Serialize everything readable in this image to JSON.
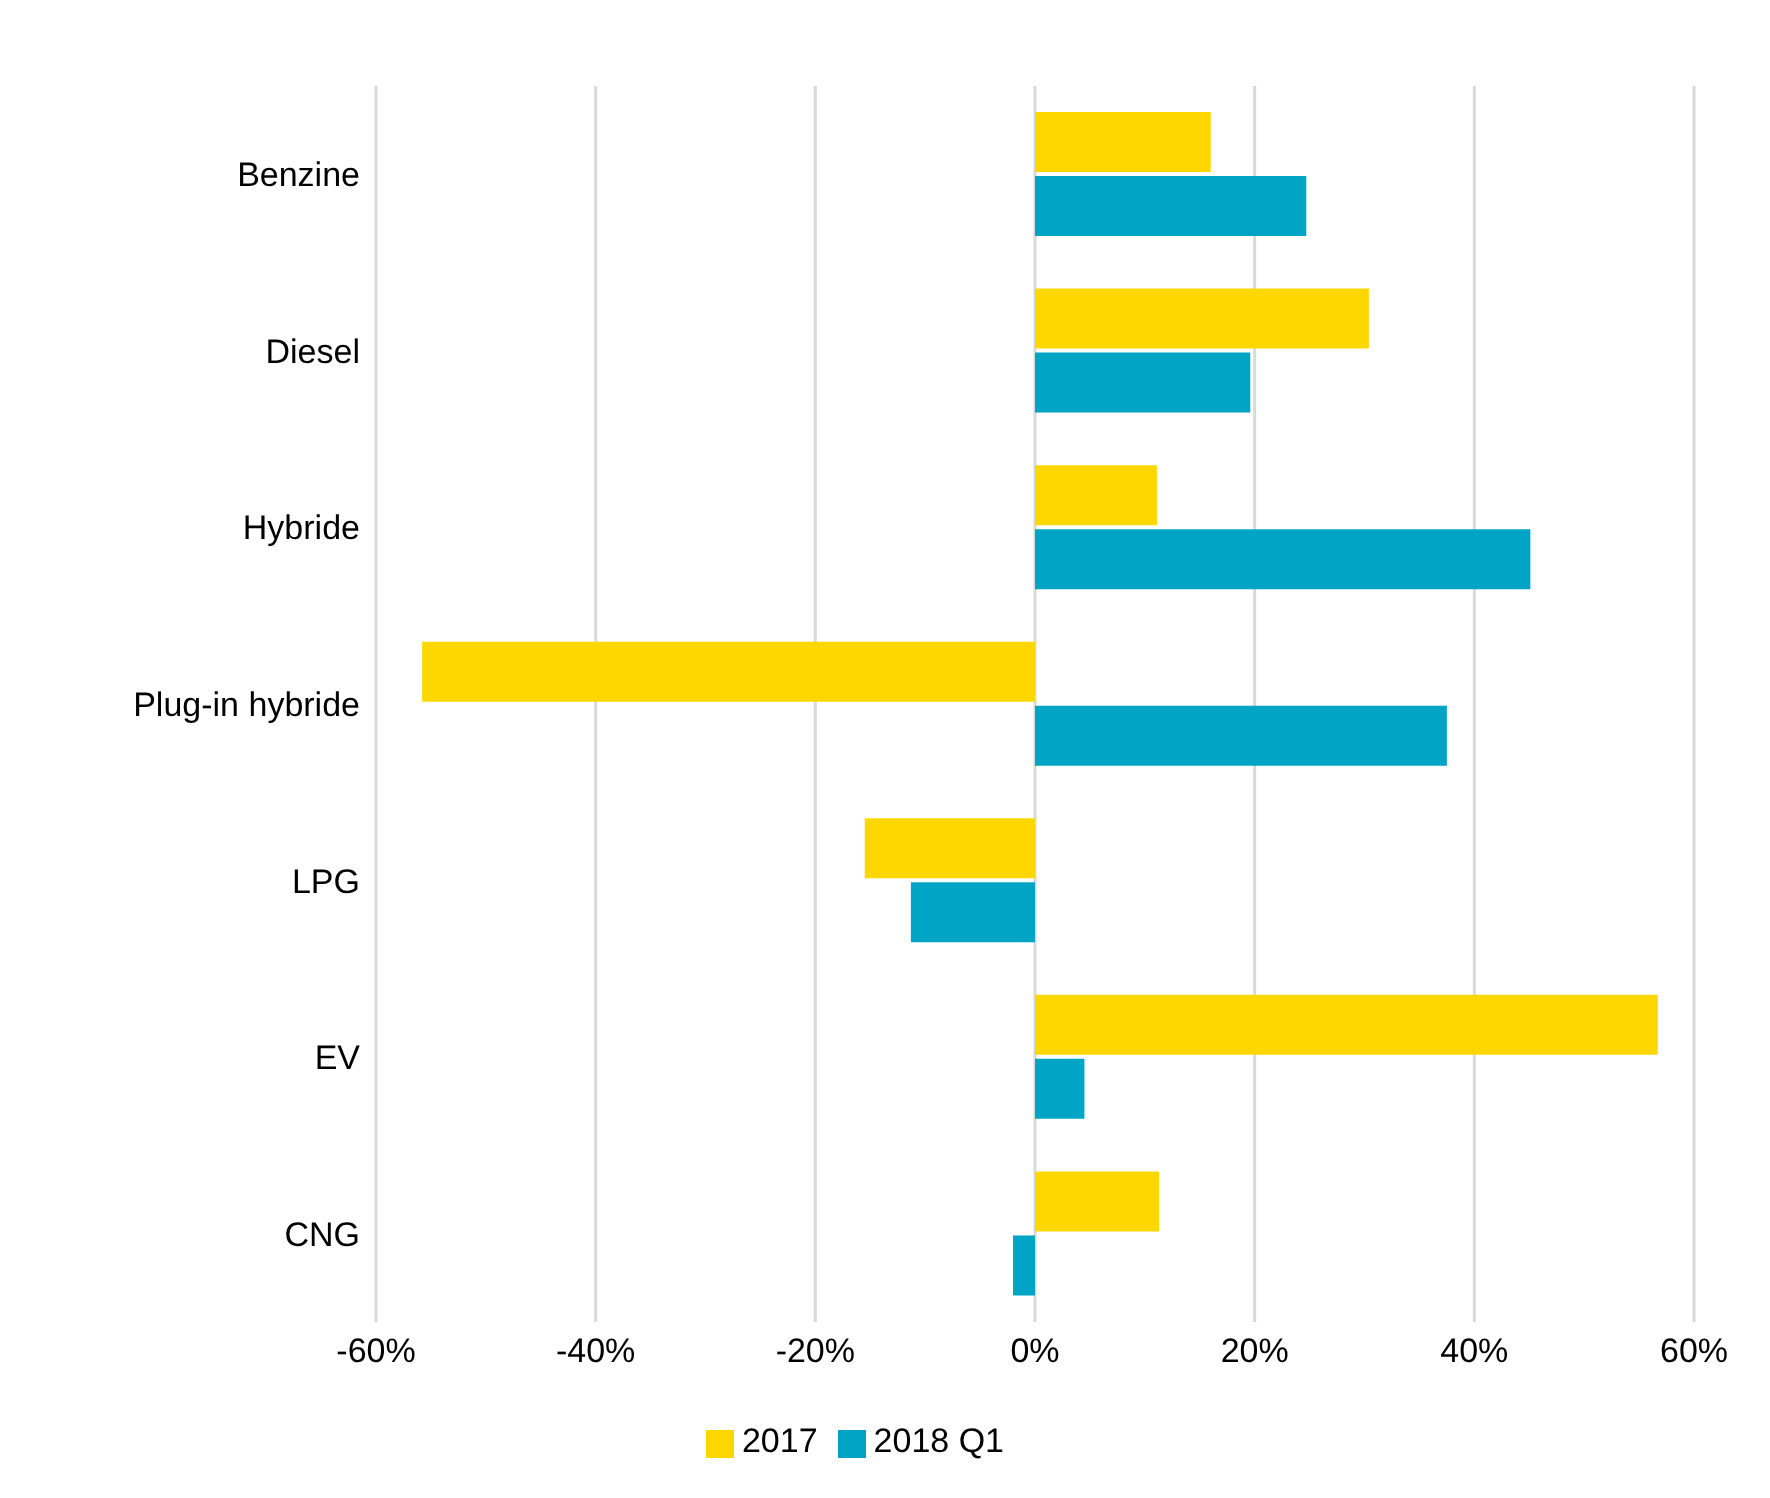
{
  "chart_data": {
    "type": "bar",
    "orientation": "horizontal",
    "categories": [
      "Benzine",
      "Diesel",
      "Hybride",
      "Plug-in hybride",
      "LPG",
      "EV",
      "CNG"
    ],
    "series": [
      {
        "name": "2017",
        "color": "#ffd700",
        "values": [
          16,
          30.4,
          11.1,
          -55.8,
          -15.5,
          56.7,
          11.3
        ]
      },
      {
        "name": "2018 Q1",
        "color": "#00a4c4",
        "values": [
          24.7,
          19.6,
          45.1,
          37.5,
          -11.3,
          4.5,
          -2
        ]
      }
    ],
    "xlim": [
      -60,
      60
    ],
    "xticks": [
      {
        "value": -60,
        "label": "-60%"
      },
      {
        "value": -40,
        "label": "-40%"
      },
      {
        "value": -20,
        "label": "-20%"
      },
      {
        "value": 0,
        "label": "0%"
      },
      {
        "value": 20,
        "label": "20%"
      },
      {
        "value": 40,
        "label": "40%"
      },
      {
        "value": 60,
        "label": "60%"
      }
    ],
    "grid": "x",
    "legend": "bottom"
  }
}
